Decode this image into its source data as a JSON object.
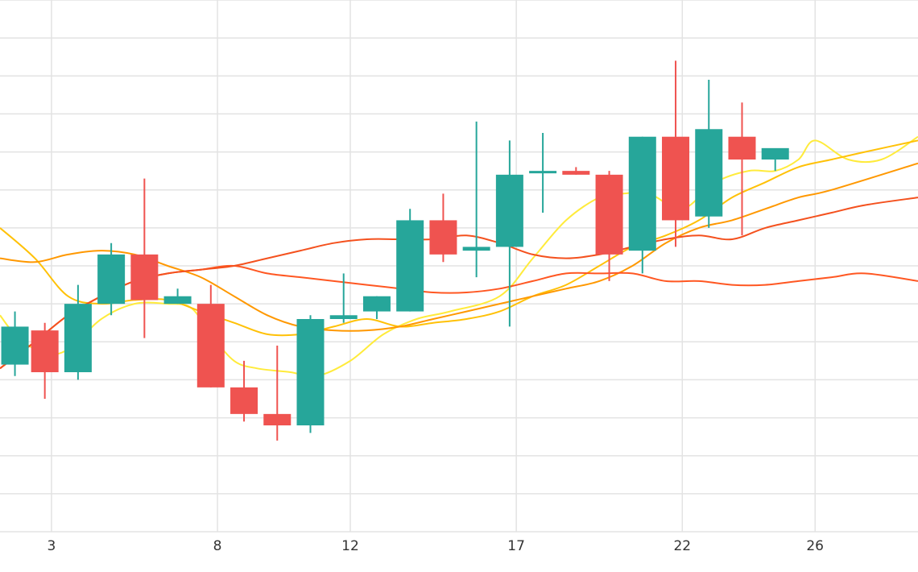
{
  "chart_data": {
    "type": "candlestick",
    "title": "",
    "xlabel": "",
    "ylabel": "",
    "xlim": [
      1.45,
      29.1
    ],
    "ylim": [
      0,
      14
    ],
    "grid": true,
    "legend": "none",
    "x_ticks": [
      3,
      8,
      12,
      17,
      22,
      26
    ],
    "x_tick_labels": [
      "3",
      "8",
      "12",
      "17",
      "22",
      "26"
    ],
    "y_gridlines": [
      0,
      1,
      2,
      3,
      4,
      5,
      6,
      7,
      8,
      9,
      10,
      11,
      12,
      13,
      14
    ],
    "colors": {
      "up": "#26a69a",
      "down": "#ef5350"
    },
    "candles": [
      {
        "x": 1.9,
        "open": 4.4,
        "high": 5.8,
        "low": 4.1,
        "close": 5.4
      },
      {
        "x": 2.8,
        "open": 5.3,
        "high": 5.5,
        "low": 3.5,
        "close": 4.2
      },
      {
        "x": 3.8,
        "open": 4.2,
        "high": 6.5,
        "low": 4.0,
        "close": 6.0
      },
      {
        "x": 4.8,
        "open": 6.0,
        "high": 7.6,
        "low": 5.7,
        "close": 7.3
      },
      {
        "x": 5.8,
        "open": 7.3,
        "high": 9.3,
        "low": 5.1,
        "close": 6.1
      },
      {
        "x": 6.8,
        "open": 6.0,
        "high": 6.4,
        "low": 6.0,
        "close": 6.2
      },
      {
        "x": 7.8,
        "open": 6.0,
        "high": 6.5,
        "low": 3.8,
        "close": 3.8
      },
      {
        "x": 8.8,
        "open": 3.8,
        "high": 4.5,
        "low": 2.9,
        "close": 3.1
      },
      {
        "x": 9.8,
        "open": 3.1,
        "high": 4.9,
        "low": 2.4,
        "close": 2.8
      },
      {
        "x": 10.8,
        "open": 2.8,
        "high": 5.7,
        "low": 2.6,
        "close": 5.6
      },
      {
        "x": 11.8,
        "open": 5.6,
        "high": 6.8,
        "low": 5.5,
        "close": 5.7
      },
      {
        "x": 12.8,
        "open": 5.8,
        "high": 6.2,
        "low": 5.6,
        "close": 6.2
      },
      {
        "x": 13.8,
        "open": 5.8,
        "high": 8.5,
        "low": 5.8,
        "close": 8.2
      },
      {
        "x": 14.8,
        "open": 8.2,
        "high": 8.9,
        "low": 7.1,
        "close": 7.3
      },
      {
        "x": 15.8,
        "open": 7.4,
        "high": 10.8,
        "low": 6.7,
        "close": 7.5
      },
      {
        "x": 16.8,
        "open": 7.5,
        "high": 10.3,
        "low": 5.4,
        "close": 9.4
      },
      {
        "x": 17.8,
        "open": 9.5,
        "high": 10.5,
        "low": 8.4,
        "close": 9.5
      },
      {
        "x": 18.8,
        "open": 9.5,
        "high": 9.6,
        "low": 9.4,
        "close": 9.4
      },
      {
        "x": 19.8,
        "open": 9.4,
        "high": 9.5,
        "low": 6.6,
        "close": 7.3
      },
      {
        "x": 20.8,
        "open": 7.4,
        "high": 10.4,
        "low": 6.8,
        "close": 10.4
      },
      {
        "x": 21.8,
        "open": 10.4,
        "high": 12.4,
        "low": 7.5,
        "close": 8.2
      },
      {
        "x": 22.8,
        "open": 8.3,
        "high": 11.9,
        "low": 8.0,
        "close": 10.6
      },
      {
        "x": 23.8,
        "open": 10.4,
        "high": 11.3,
        "low": 7.8,
        "close": 9.8
      },
      {
        "x": 24.8,
        "open": 9.8,
        "high": 10.0,
        "low": 9.5,
        "close": 10.1
      }
    ],
    "series": [
      {
        "color": "#ffeb3b",
        "values": [
          [
            1.45,
            5.7
          ],
          [
            2.0,
            5.1
          ],
          [
            2.8,
            4.7
          ],
          [
            3.5,
            4.8
          ],
          [
            4.5,
            5.6
          ],
          [
            5.5,
            6.0
          ],
          [
            6.5,
            6.0
          ],
          [
            7.2,
            5.9
          ],
          [
            7.8,
            5.2
          ],
          [
            8.5,
            4.5
          ],
          [
            9.2,
            4.3
          ],
          [
            10.2,
            4.2
          ],
          [
            11.0,
            4.1
          ],
          [
            12.0,
            4.5
          ],
          [
            13.0,
            5.2
          ],
          [
            14.0,
            5.6
          ],
          [
            15.0,
            5.8
          ],
          [
            16.5,
            6.2
          ],
          [
            17.5,
            7.2
          ],
          [
            18.5,
            8.2
          ],
          [
            19.5,
            8.8
          ],
          [
            20.2,
            8.9
          ],
          [
            21.0,
            8.9
          ],
          [
            22.0,
            8.5
          ],
          [
            23.0,
            9.2
          ],
          [
            24.0,
            9.5
          ],
          [
            24.8,
            9.5
          ],
          [
            25.5,
            9.8
          ],
          [
            26.0,
            10.3
          ],
          [
            27.0,
            9.8
          ],
          [
            28.0,
            9.8
          ],
          [
            29.1,
            10.4
          ]
        ]
      },
      {
        "color": "#ffc107",
        "values": [
          [
            1.45,
            8.0
          ],
          [
            2.5,
            7.2
          ],
          [
            3.5,
            6.2
          ],
          [
            4.5,
            6.0
          ],
          [
            5.5,
            6.1
          ],
          [
            6.5,
            6.1
          ],
          [
            7.5,
            5.8
          ],
          [
            8.5,
            5.5
          ],
          [
            9.5,
            5.2
          ],
          [
            10.5,
            5.2
          ],
          [
            11.5,
            5.4
          ],
          [
            12.5,
            5.6
          ],
          [
            13.5,
            5.4
          ],
          [
            14.5,
            5.5
          ],
          [
            15.5,
            5.6
          ],
          [
            16.5,
            5.8
          ],
          [
            17.5,
            6.2
          ],
          [
            18.5,
            6.5
          ],
          [
            19.5,
            7.0
          ],
          [
            20.5,
            7.5
          ],
          [
            21.5,
            7.8
          ],
          [
            22.5,
            8.2
          ],
          [
            23.5,
            8.8
          ],
          [
            24.5,
            9.2
          ],
          [
            25.5,
            9.6
          ],
          [
            26.5,
            9.8
          ],
          [
            27.5,
            10.0
          ],
          [
            29.1,
            10.3
          ]
        ]
      },
      {
        "color": "#ff9800",
        "values": [
          [
            1.45,
            7.2
          ],
          [
            2.5,
            7.1
          ],
          [
            3.5,
            7.3
          ],
          [
            4.5,
            7.4
          ],
          [
            5.5,
            7.3
          ],
          [
            6.5,
            7.0
          ],
          [
            7.5,
            6.7
          ],
          [
            8.5,
            6.2
          ],
          [
            9.5,
            5.7
          ],
          [
            10.5,
            5.4
          ],
          [
            11.5,
            5.3
          ],
          [
            12.5,
            5.3
          ],
          [
            13.5,
            5.4
          ],
          [
            14.5,
            5.6
          ],
          [
            15.5,
            5.8
          ],
          [
            16.5,
            6.0
          ],
          [
            17.5,
            6.2
          ],
          [
            18.5,
            6.4
          ],
          [
            19.5,
            6.6
          ],
          [
            20.5,
            7.0
          ],
          [
            21.5,
            7.6
          ],
          [
            22.5,
            8.0
          ],
          [
            23.5,
            8.2
          ],
          [
            24.5,
            8.5
          ],
          [
            25.5,
            8.8
          ],
          [
            26.5,
            9.0
          ],
          [
            29.1,
            9.7
          ]
        ]
      },
      {
        "color": "#ff5722",
        "values": [
          [
            1.45,
            4.3
          ],
          [
            2.5,
            5.0
          ],
          [
            3.5,
            5.7
          ],
          [
            4.5,
            6.2
          ],
          [
            5.5,
            6.6
          ],
          [
            6.5,
            6.8
          ],
          [
            7.5,
            6.9
          ],
          [
            8.5,
            7.0
          ],
          [
            9.5,
            6.8
          ],
          [
            10.5,
            6.7
          ],
          [
            11.5,
            6.6
          ],
          [
            12.5,
            6.5
          ],
          [
            13.5,
            6.4
          ],
          [
            14.5,
            6.3
          ],
          [
            15.5,
            6.3
          ],
          [
            16.5,
            6.4
          ],
          [
            17.5,
            6.6
          ],
          [
            18.5,
            6.8
          ],
          [
            19.5,
            6.8
          ],
          [
            20.5,
            6.8
          ],
          [
            21.5,
            6.6
          ],
          [
            22.5,
            6.6
          ],
          [
            23.5,
            6.5
          ],
          [
            24.5,
            6.5
          ],
          [
            25.5,
            6.6
          ],
          [
            26.5,
            6.7
          ],
          [
            27.5,
            6.8
          ],
          [
            29.1,
            6.6
          ]
        ]
      },
      {
        "color": "#f4511e",
        "values": [
          [
            1.45,
            4.3
          ],
          [
            2.5,
            5.0
          ],
          [
            3.5,
            5.7
          ],
          [
            4.5,
            6.2
          ],
          [
            5.5,
            6.6
          ],
          [
            6.5,
            6.8
          ],
          [
            7.5,
            6.9
          ],
          [
            8.5,
            7.0
          ],
          [
            9.5,
            7.2
          ],
          [
            10.5,
            7.4
          ],
          [
            11.5,
            7.6
          ],
          [
            12.5,
            7.7
          ],
          [
            13.5,
            7.7
          ],
          [
            14.5,
            7.7
          ],
          [
            15.5,
            7.8
          ],
          [
            16.5,
            7.6
          ],
          [
            17.5,
            7.3
          ],
          [
            18.5,
            7.2
          ],
          [
            19.5,
            7.3
          ],
          [
            20.5,
            7.5
          ],
          [
            21.5,
            7.7
          ],
          [
            22.5,
            7.8
          ],
          [
            23.5,
            7.7
          ],
          [
            24.5,
            8.0
          ],
          [
            25.5,
            8.2
          ],
          [
            26.5,
            8.4
          ],
          [
            27.5,
            8.6
          ],
          [
            29.1,
            8.8
          ]
        ]
      }
    ]
  }
}
